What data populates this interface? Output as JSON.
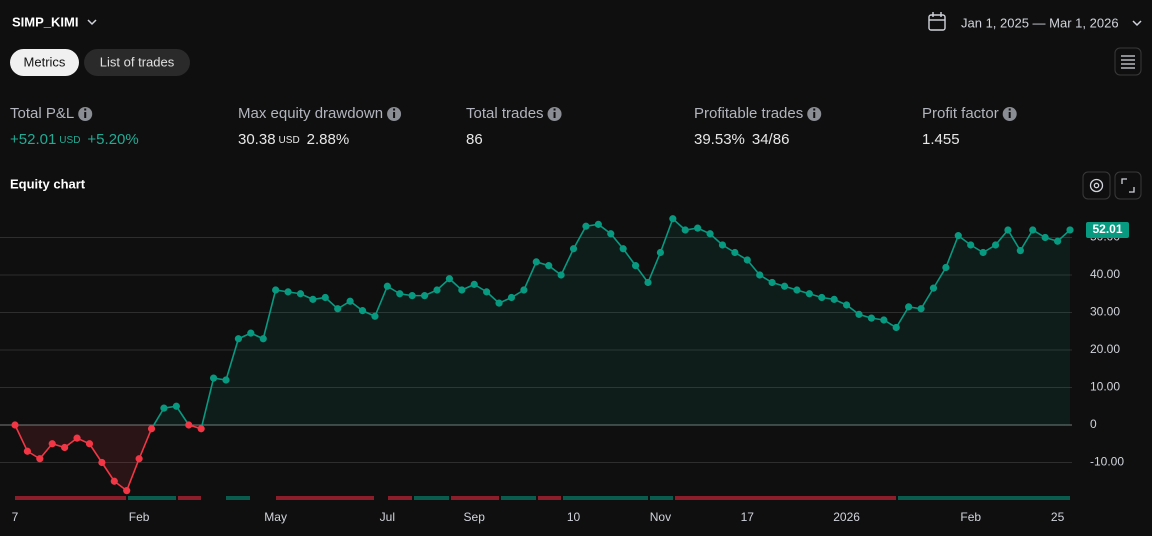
{
  "header": {
    "strategy": "SIMP_KIMI",
    "date_range": "Jan 1, 2025 — Mar 1, 2026"
  },
  "tabs": [
    "Metrics",
    "List of trades"
  ],
  "metrics": [
    {
      "label": "Total P&L",
      "value": "+52.01",
      "unit": "USD",
      "extra": "+5.20%"
    },
    {
      "label": "Max equity drawdown",
      "value": "30.38",
      "unit": "USD",
      "extra": "2.88%"
    },
    {
      "label": "Total trades",
      "value": "86"
    },
    {
      "label": "Profitable trades",
      "value": "39.53%",
      "extra": "34/86"
    },
    {
      "label": "Profit factor",
      "value": "1.455"
    }
  ],
  "chart_data": {
    "type": "line",
    "title": "Equity chart",
    "categories": [
      "7",
      null,
      null,
      null,
      null,
      null,
      null,
      null,
      null,
      null,
      "Feb",
      null,
      null,
      null,
      null,
      null,
      null,
      null,
      null,
      null,
      null,
      "May",
      null,
      null,
      null,
      null,
      null,
      null,
      null,
      null,
      "Jul",
      null,
      null,
      null,
      null,
      null,
      null,
      "Sep",
      null,
      null,
      null,
      null,
      null,
      null,
      null,
      "10",
      null,
      null,
      null,
      null,
      null,
      null,
      "Nov",
      null,
      null,
      null,
      null,
      null,
      null,
      "17",
      null,
      null,
      null,
      null,
      null,
      null,
      null,
      "2026",
      null,
      null,
      null,
      null,
      null,
      null,
      null,
      null,
      null,
      "Feb",
      null,
      null,
      null,
      null,
      null,
      null,
      "25",
      null
    ],
    "series": [
      {
        "color": "#089981",
        "negative_color": "#f23645",
        "values": [
          0,
          -7,
          -9,
          -5,
          -6,
          -3.5,
          -5,
          -10,
          -15,
          -17.5,
          -9,
          -1,
          4.5,
          5,
          0,
          -1,
          12.5,
          12,
          23,
          24.5,
          23,
          36,
          35.5,
          35,
          33.5,
          34,
          31,
          33,
          30.5,
          29,
          37,
          35,
          34.5,
          34.5,
          36,
          39,
          36,
          37.5,
          35.5,
          32.5,
          34,
          36,
          43.5,
          42.5,
          40,
          47,
          53,
          53.5,
          51,
          47,
          42.5,
          38,
          46,
          55,
          52,
          52.5,
          51,
          48,
          46,
          44,
          40,
          38,
          37,
          36,
          35,
          34,
          33.5,
          32,
          29.5,
          28.5,
          28,
          26,
          31.5,
          31,
          36.5,
          42,
          50.5,
          48,
          46,
          48,
          52,
          46.5,
          52,
          50,
          49,
          52.01
        ]
      }
    ],
    "ylim": [
      -20,
      60
    ],
    "yticks": [
      {
        "value": -10,
        "label": "-10.00"
      },
      0,
      {
        "value": 10,
        "label": "10.00"
      },
      {
        "value": 20,
        "label": "20.00"
      },
      {
        "value": 30,
        "label": "30.00"
      },
      {
        "value": 40,
        "label": "40.00"
      },
      {
        "value": 50,
        "label": "50.00"
      }
    ],
    "grid": true
  }
}
